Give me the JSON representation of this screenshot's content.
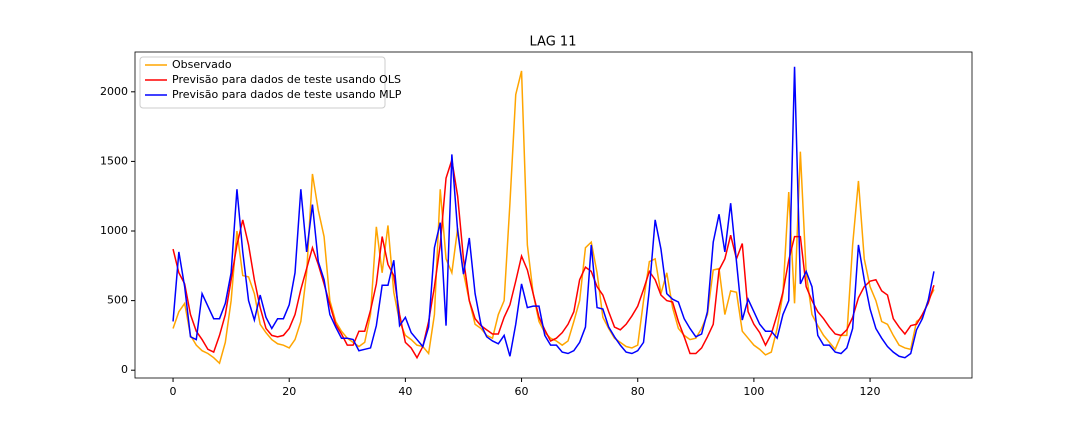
{
  "chart_data": {
    "type": "line",
    "title": "LAG 11",
    "x": [
      0,
      1,
      2,
      3,
      4,
      5,
      6,
      7,
      8,
      9,
      10,
      11,
      12,
      13,
      14,
      15,
      16,
      17,
      18,
      19,
      20,
      21,
      22,
      23,
      24,
      25,
      26,
      27,
      28,
      29,
      30,
      31,
      32,
      33,
      34,
      35,
      36,
      37,
      38,
      39,
      40,
      41,
      42,
      43,
      44,
      45,
      46,
      47,
      48,
      49,
      50,
      51,
      52,
      53,
      54,
      55,
      56,
      57,
      58,
      59,
      60,
      61,
      62,
      63,
      64,
      65,
      66,
      67,
      68,
      69,
      70,
      71,
      72,
      73,
      74,
      75,
      76,
      77,
      78,
      79,
      80,
      81,
      82,
      83,
      84,
      85,
      86,
      87,
      88,
      89,
      90,
      91,
      92,
      93,
      94,
      95,
      96,
      97,
      98,
      99,
      100,
      101,
      102,
      103,
      104,
      105,
      106,
      107,
      108,
      109,
      110,
      111,
      112,
      113,
      114,
      115,
      116,
      117,
      118,
      119,
      120,
      121,
      122,
      123,
      124,
      125,
      126,
      127,
      128,
      129,
      130,
      131
    ],
    "series": [
      {
        "name": "Observado",
        "color": "#ffa500",
        "values": [
          300,
          420,
          480,
          250,
          180,
          140,
          120,
          90,
          50,
          200,
          500,
          1000,
          680,
          670,
          550,
          330,
          270,
          220,
          190,
          180,
          160,
          220,
          350,
          700,
          1410,
          1150,
          960,
          500,
          350,
          280,
          230,
          200,
          170,
          200,
          400,
          1030,
          700,
          1040,
          560,
          350,
          250,
          220,
          180,
          170,
          120,
          400,
          1300,
          800,
          700,
          1020,
          700,
          500,
          330,
          300,
          250,
          230,
          400,
          500,
          1200,
          1980,
          2150,
          900,
          550,
          350,
          270,
          230,
          210,
          180,
          210,
          350,
          500,
          880,
          920,
          700,
          380,
          300,
          230,
          200,
          170,
          160,
          180,
          500,
          780,
          800,
          550,
          700,
          450,
          300,
          250,
          220,
          230,
          300,
          400,
          720,
          730,
          400,
          570,
          560,
          280,
          230,
          180,
          150,
          110,
          130,
          300,
          550,
          1280,
          480,
          1570,
          700,
          400,
          320,
          250,
          200,
          150,
          250,
          250,
          900,
          1360,
          800,
          600,
          500,
          350,
          330,
          250,
          180,
          160,
          150,
          350,
          380,
          500,
          580
        ]
      },
      {
        "name": "Previsão para dados de teste usando OLS",
        "color": "#ff0000",
        "values": [
          870,
          700,
          620,
          400,
          280,
          220,
          150,
          130,
          250,
          400,
          650,
          900,
          1080,
          900,
          650,
          450,
          300,
          250,
          240,
          250,
          300,
          400,
          580,
          730,
          880,
          760,
          620,
          470,
          330,
          260,
          180,
          180,
          280,
          280,
          430,
          620,
          960,
          760,
          680,
          400,
          200,
          160,
          90,
          170,
          350,
          600,
          900,
          1380,
          1510,
          1250,
          800,
          500,
          370,
          320,
          290,
          260,
          260,
          380,
          470,
          640,
          820,
          720,
          550,
          380,
          290,
          210,
          230,
          270,
          330,
          420,
          650,
          740,
          710,
          600,
          540,
          420,
          310,
          290,
          330,
          390,
          460,
          580,
          710,
          650,
          540,
          500,
          490,
          350,
          240,
          120,
          120,
          160,
          240,
          330,
          720,
          800,
          970,
          800,
          910,
          420,
          330,
          270,
          180,
          260,
          400,
          560,
          790,
          960,
          960,
          600,
          500,
          420,
          370,
          310,
          260,
          250,
          290,
          380,
          520,
          600,
          640,
          650,
          570,
          540,
          370,
          310,
          260,
          320,
          330,
          400,
          480,
          610
        ]
      },
      {
        "name": "Previsão para dados de teste usando MLP",
        "color": "#0000ff",
        "values": [
          350,
          850,
          600,
          240,
          220,
          550,
          460,
          370,
          370,
          480,
          700,
          1300,
          850,
          500,
          360,
          540,
          380,
          300,
          370,
          370,
          470,
          700,
          1300,
          850,
          1190,
          780,
          650,
          400,
          310,
          230,
          230,
          220,
          140,
          150,
          160,
          320,
          610,
          610,
          790,
          320,
          380,
          270,
          220,
          170,
          310,
          880,
          1060,
          320,
          1550,
          1000,
          690,
          950,
          550,
          330,
          240,
          210,
          190,
          250,
          100,
          330,
          620,
          450,
          460,
          460,
          250,
          180,
          180,
          130,
          120,
          140,
          200,
          310,
          900,
          450,
          440,
          310,
          240,
          180,
          130,
          120,
          140,
          200,
          580,
          1080,
          870,
          550,
          510,
          490,
          370,
          300,
          240,
          260,
          420,
          920,
          1120,
          850,
          1200,
          780,
          360,
          510,
          420,
          330,
          280,
          280,
          230,
          400,
          500,
          2180,
          620,
          710,
          600,
          250,
          180,
          180,
          130,
          120,
          160,
          300,
          900,
          650,
          440,
          300,
          230,
          170,
          130,
          100,
          90,
          120,
          290,
          370,
          500,
          710
        ]
      }
    ],
    "xlim": [
      -6.55,
      137.55
    ],
    "ylim": [
      -56,
      2286
    ],
    "xticks": [
      0,
      20,
      40,
      60,
      80,
      100,
      120
    ],
    "yticks": [
      0,
      500,
      1000,
      1500,
      2000
    ],
    "grid": false,
    "legend": "upper left"
  }
}
